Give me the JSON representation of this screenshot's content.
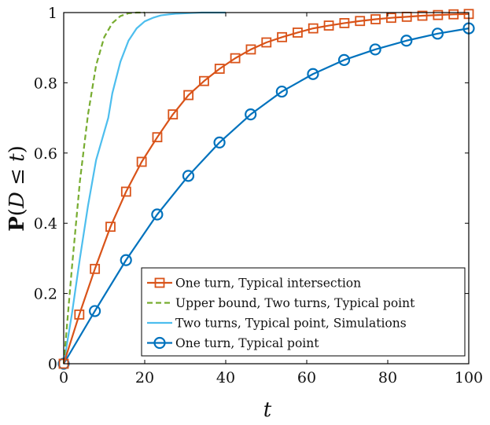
{
  "chart_data": {
    "type": "line",
    "title": "",
    "xlabel": "t",
    "ylabel": "P(D ≤ t)",
    "ylabel_parts": {
      "p": "P",
      "open": "(",
      "d": "D",
      "le": " ≤ ",
      "t": "t",
      "close": ")"
    },
    "xlim": [
      0,
      100
    ],
    "ylim": [
      0,
      1
    ],
    "xticks": [
      0,
      20,
      40,
      60,
      80,
      100
    ],
    "yticks": [
      0,
      0.2,
      0.4,
      0.6,
      0.8,
      1
    ],
    "xtick_labels": [
      "0",
      "20",
      "40",
      "60",
      "80",
      "100"
    ],
    "ytick_labels": [
      "0",
      "0.2",
      "0.4",
      "0.6",
      "0.8",
      "1"
    ],
    "grid": false,
    "legend_position": "bottom-right",
    "series": [
      {
        "name": "One turn, Typical intersection",
        "color": "#D95319",
        "line_style": "solid",
        "marker": "square",
        "x": [
          0,
          3.85,
          7.7,
          11.55,
          15.4,
          19.25,
          23.1,
          26.95,
          30.8,
          34.65,
          38.5,
          42.35,
          46.2,
          50.05,
          53.9,
          57.75,
          61.6,
          65.45,
          69.3,
          73.15,
          77.0,
          80.85,
          84.7,
          88.55,
          92.4,
          96.25,
          100
        ],
        "y": [
          0,
          0.14,
          0.27,
          0.39,
          0.49,
          0.575,
          0.645,
          0.71,
          0.765,
          0.805,
          0.84,
          0.87,
          0.895,
          0.915,
          0.93,
          0.943,
          0.955,
          0.963,
          0.97,
          0.976,
          0.981,
          0.985,
          0.988,
          0.991,
          0.993,
          0.995,
          0.996
        ]
      },
      {
        "name": "Upper bound, Two turns, Typical point",
        "color": "#77AC30",
        "line_style": "dashed",
        "marker": "none",
        "x": [
          0,
          2,
          4,
          6,
          8,
          10,
          12,
          14,
          16,
          18,
          20
        ],
        "y": [
          0,
          0.27,
          0.52,
          0.71,
          0.85,
          0.93,
          0.97,
          0.99,
          0.998,
          1.0,
          1.0
        ]
      },
      {
        "name": "Two turns, Typical point, Simulations",
        "color": "#4DBEEE",
        "line_style": "solid",
        "marker": "none",
        "x": [
          0,
          2,
          4,
          6,
          8,
          10,
          11,
          12,
          14,
          16,
          18,
          20,
          22,
          24,
          26,
          28,
          30,
          32,
          34,
          36,
          38,
          40
        ],
        "y": [
          0,
          0.14,
          0.3,
          0.45,
          0.58,
          0.66,
          0.7,
          0.77,
          0.86,
          0.92,
          0.955,
          0.975,
          0.985,
          0.992,
          0.995,
          0.997,
          0.998,
          0.999,
          1.0,
          1.0,
          1.0,
          1.0
        ]
      },
      {
        "name": "One turn, Typical point",
        "color": "#0072BD",
        "line_style": "solid",
        "marker": "circle",
        "x": [
          0,
          7.69,
          15.38,
          23.08,
          30.77,
          38.46,
          46.15,
          53.85,
          61.54,
          69.23,
          76.92,
          84.62,
          92.31,
          100
        ],
        "y": [
          0,
          0.15,
          0.295,
          0.425,
          0.535,
          0.63,
          0.71,
          0.775,
          0.825,
          0.865,
          0.895,
          0.92,
          0.94,
          0.955
        ]
      }
    ]
  }
}
